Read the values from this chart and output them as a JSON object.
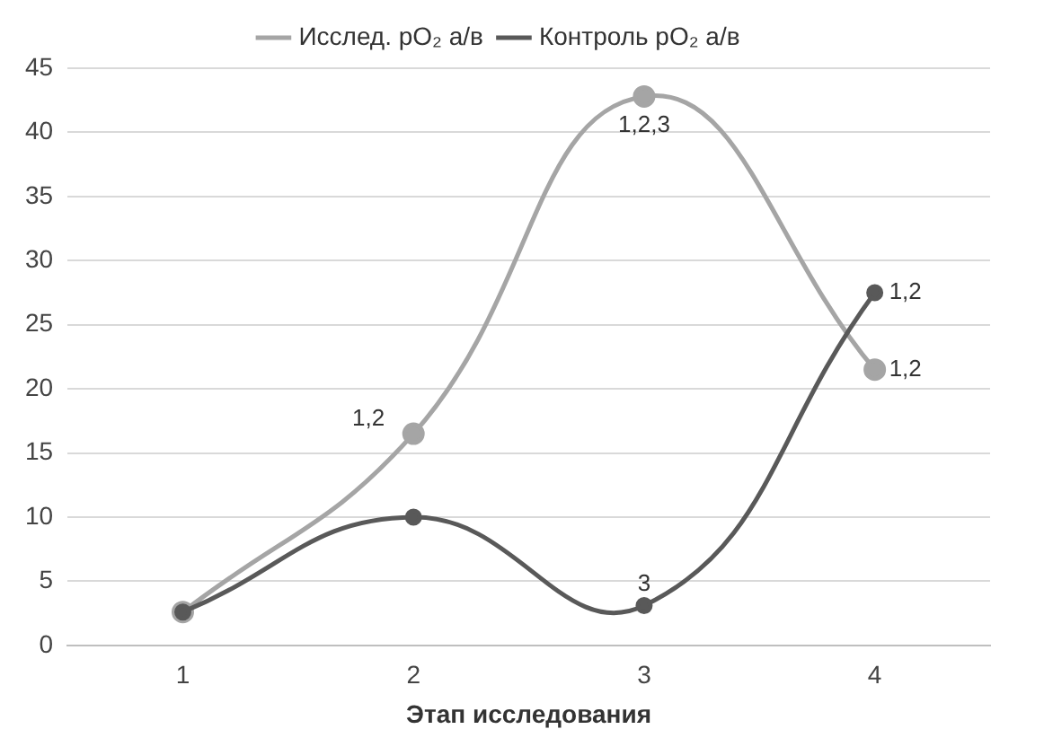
{
  "chart_data": {
    "type": "line",
    "xlabel": "Этап исследования",
    "categories": [
      "1",
      "2",
      "3",
      "4"
    ],
    "series": [
      {
        "name": "Исслед. pO₂ а/в",
        "color": "#a5a5a5",
        "values": [
          2.6,
          16.5,
          42.8,
          21.5
        ]
      },
      {
        "name": "Контроль pO₂ а/в",
        "color": "#595959",
        "values": [
          2.6,
          10,
          3.1,
          27.5
        ]
      }
    ],
    "ylim": [
      0,
      45
    ],
    "yticks": [
      0,
      5,
      10,
      15,
      20,
      25,
      30,
      35,
      40,
      45
    ],
    "grid": "y",
    "legend": "top",
    "marker": "circle",
    "line_style": "solid",
    "annotations": [
      {
        "text": "1,2",
        "x": "2",
        "y": 16.5
      },
      {
        "text": "1,2,3",
        "x": "3",
        "y": 42.8
      },
      {
        "text": "1,2",
        "x": "4",
        "y": 21.5
      },
      {
        "text": "1,2",
        "x": "4",
        "y": 27.5
      },
      {
        "text": "3",
        "x": "3",
        "y": 3.1
      }
    ]
  }
}
